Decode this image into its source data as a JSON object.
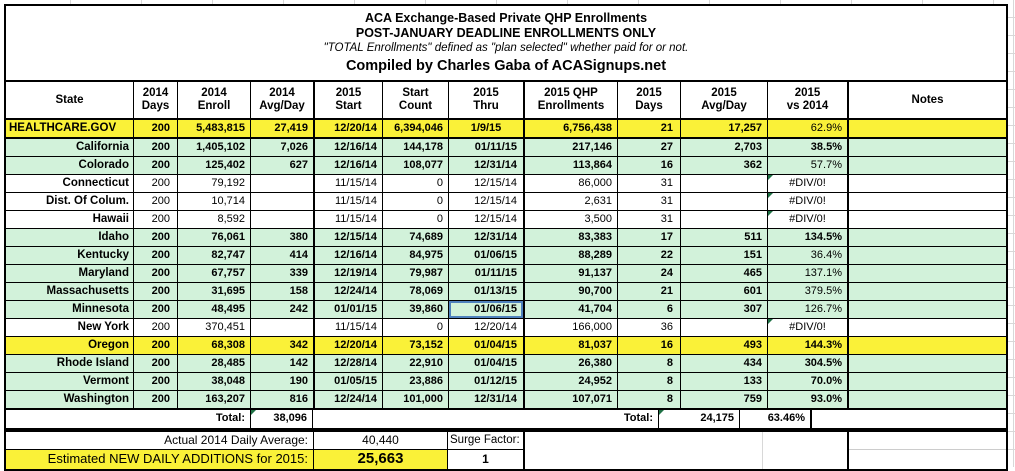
{
  "title": {
    "line1": "ACA Exchange-Based Private QHP Enrollments",
    "line2": "POST-JANUARY DEADLINE ENROLLMENTS ONLY",
    "line3": "\"TOTAL Enrollments\" defined as \"plan selected\" whether paid for or not.",
    "line4": "Compiled by Charles Gaba of ACASignups.net"
  },
  "colors": {
    "highlight_yellow": "#faf138",
    "highlight_green": "#d2f2da",
    "row_white": "#ffffff",
    "error_indicator_green": "#1f7145",
    "selection_border_blue": "#4f81bd",
    "border_black": "#000000"
  },
  "misc": {
    "error_text": "#DIV/0!"
  },
  "table": {
    "headers": [
      "State",
      "2014\nDays",
      "2014\nEnroll",
      "2014\nAvg/Day",
      "2015\nStart",
      "Start\nCount",
      "2015\nThru",
      "2015 QHP\nEnrollments",
      "2015\nDays",
      "2015\nAvg/Day",
      "2015\nvs 2014",
      "Notes"
    ],
    "rows": [
      {
        "state": "HEALTHCARE.GOV",
        "days_2014": "200",
        "enroll_2014": "5,483,815",
        "avgday_2014": "27,419",
        "start_2015": "12/20/14",
        "start_count": "6,394,046",
        "thru_2015": "1/9/15",
        "qhp_2015": "6,756,438",
        "days_2015": "21",
        "avgday_2015": "17,257",
        "vs_2014": "62.9%",
        "notes": "",
        "bg": "yellow",
        "values_bold": true,
        "pct_bold": false,
        "state_left": true,
        "thru_center": true,
        "thru_selected": false
      },
      {
        "state": "California",
        "days_2014": "200",
        "enroll_2014": "1,405,102",
        "avgday_2014": "7,026",
        "start_2015": "12/16/14",
        "start_count": "144,178",
        "thru_2015": "01/11/15",
        "qhp_2015": "217,146",
        "days_2015": "27",
        "avgday_2015": "2,703",
        "vs_2014": "38.5%",
        "notes": "",
        "bg": "green",
        "values_bold": true,
        "pct_bold": true,
        "state_left": false,
        "thru_center": false,
        "thru_selected": false
      },
      {
        "state": "Colorado",
        "days_2014": "200",
        "enroll_2014": "125,402",
        "avgday_2014": "627",
        "start_2015": "12/16/14",
        "start_count": "108,077",
        "thru_2015": "12/31/14",
        "qhp_2015": "113,864",
        "days_2015": "16",
        "avgday_2015": "362",
        "vs_2014": "57.7%",
        "notes": "",
        "bg": "green",
        "values_bold": true,
        "pct_bold": false,
        "state_left": false,
        "thru_center": false,
        "thru_selected": false
      },
      {
        "state": "Connecticut",
        "days_2014": "200",
        "enroll_2014": "79,192",
        "avgday_2014": "",
        "start_2015": "11/15/14",
        "start_count": "0",
        "thru_2015": "12/15/14",
        "qhp_2015": "86,000",
        "days_2015": "31",
        "avgday_2015": "",
        "vs_2014": "#DIV/0!",
        "notes": "",
        "bg": "white",
        "values_bold": false,
        "pct_bold": false,
        "state_left": false,
        "thru_center": false,
        "thru_selected": false
      },
      {
        "state": "Dist. Of Colum.",
        "days_2014": "200",
        "enroll_2014": "10,714",
        "avgday_2014": "",
        "start_2015": "11/15/14",
        "start_count": "0",
        "thru_2015": "12/15/14",
        "qhp_2015": "2,631",
        "days_2015": "31",
        "avgday_2015": "",
        "vs_2014": "#DIV/0!",
        "notes": "",
        "bg": "white",
        "values_bold": false,
        "pct_bold": false,
        "state_left": false,
        "thru_center": false,
        "thru_selected": false
      },
      {
        "state": "Hawaii",
        "days_2014": "200",
        "enroll_2014": "8,592",
        "avgday_2014": "",
        "start_2015": "11/15/14",
        "start_count": "0",
        "thru_2015": "12/15/14",
        "qhp_2015": "3,500",
        "days_2015": "31",
        "avgday_2015": "",
        "vs_2014": "#DIV/0!",
        "notes": "",
        "bg": "white",
        "values_bold": false,
        "pct_bold": false,
        "state_left": false,
        "thru_center": false,
        "thru_selected": false
      },
      {
        "state": "Idaho",
        "days_2014": "200",
        "enroll_2014": "76,061",
        "avgday_2014": "380",
        "start_2015": "12/15/14",
        "start_count": "74,689",
        "thru_2015": "12/31/14",
        "qhp_2015": "83,383",
        "days_2015": "17",
        "avgday_2015": "511",
        "vs_2014": "134.5%",
        "notes": "",
        "bg": "green",
        "values_bold": true,
        "pct_bold": true,
        "state_left": false,
        "thru_center": false,
        "thru_selected": false
      },
      {
        "state": "Kentucky",
        "days_2014": "200",
        "enroll_2014": "82,747",
        "avgday_2014": "414",
        "start_2015": "12/16/14",
        "start_count": "84,975",
        "thru_2015": "01/06/15",
        "qhp_2015": "88,289",
        "days_2015": "22",
        "avgday_2015": "151",
        "vs_2014": "36.4%",
        "notes": "",
        "bg": "green",
        "values_bold": true,
        "pct_bold": false,
        "state_left": false,
        "thru_center": false,
        "thru_selected": false
      },
      {
        "state": "Maryland",
        "days_2014": "200",
        "enroll_2014": "67,757",
        "avgday_2014": "339",
        "start_2015": "12/19/14",
        "start_count": "79,987",
        "thru_2015": "01/11/15",
        "qhp_2015": "91,137",
        "days_2015": "24",
        "avgday_2015": "465",
        "vs_2014": "137.1%",
        "notes": "",
        "bg": "green",
        "values_bold": true,
        "pct_bold": false,
        "state_left": false,
        "thru_center": false,
        "thru_selected": false
      },
      {
        "state": "Massachusetts",
        "days_2014": "200",
        "enroll_2014": "31,695",
        "avgday_2014": "158",
        "start_2015": "12/24/14",
        "start_count": "78,069",
        "thru_2015": "01/13/15",
        "qhp_2015": "90,700",
        "days_2015": "21",
        "avgday_2015": "601",
        "vs_2014": "379.5%",
        "notes": "",
        "bg": "green",
        "values_bold": true,
        "pct_bold": false,
        "state_left": false,
        "thru_center": false,
        "thru_selected": false
      },
      {
        "state": "Minnesota",
        "days_2014": "200",
        "enroll_2014": "48,495",
        "avgday_2014": "242",
        "start_2015": "01/01/15",
        "start_count": "39,860",
        "thru_2015": "01/06/15",
        "qhp_2015": "41,704",
        "days_2015": "6",
        "avgday_2015": "307",
        "vs_2014": "126.7%",
        "notes": "",
        "bg": "green",
        "values_bold": true,
        "pct_bold": false,
        "state_left": false,
        "thru_center": false,
        "thru_selected": true
      },
      {
        "state": "New York",
        "days_2014": "200",
        "enroll_2014": "370,451",
        "avgday_2014": "",
        "start_2015": "11/15/14",
        "start_count": "0",
        "thru_2015": "12/20/14",
        "qhp_2015": "166,000",
        "days_2015": "36",
        "avgday_2015": "",
        "vs_2014": "#DIV/0!",
        "notes": "",
        "bg": "white",
        "values_bold": false,
        "pct_bold": false,
        "state_left": false,
        "thru_center": false,
        "thru_selected": false
      },
      {
        "state": "Oregon",
        "days_2014": "200",
        "enroll_2014": "68,308",
        "avgday_2014": "342",
        "start_2015": "12/20/14",
        "start_count": "73,152",
        "thru_2015": "01/04/15",
        "qhp_2015": "81,037",
        "days_2015": "16",
        "avgday_2015": "493",
        "vs_2014": "144.3%",
        "notes": "",
        "bg": "yellow",
        "values_bold": true,
        "pct_bold": true,
        "state_left": false,
        "thru_center": false,
        "thru_selected": false
      },
      {
        "state": "Rhode Island",
        "days_2014": "200",
        "enroll_2014": "28,485",
        "avgday_2014": "142",
        "start_2015": "12/28/14",
        "start_count": "22,910",
        "thru_2015": "01/04/15",
        "qhp_2015": "26,380",
        "days_2015": "8",
        "avgday_2015": "434",
        "vs_2014": "304.5%",
        "notes": "",
        "bg": "green",
        "values_bold": true,
        "pct_bold": true,
        "state_left": false,
        "thru_center": false,
        "thru_selected": false
      },
      {
        "state": "Vermont",
        "days_2014": "200",
        "enroll_2014": "38,048",
        "avgday_2014": "190",
        "start_2015": "01/05/15",
        "start_count": "23,886",
        "thru_2015": "01/12/15",
        "qhp_2015": "24,952",
        "days_2015": "8",
        "avgday_2015": "133",
        "vs_2014": "70.0%",
        "notes": "",
        "bg": "green",
        "values_bold": true,
        "pct_bold": true,
        "state_left": false,
        "thru_center": false,
        "thru_selected": false
      },
      {
        "state": "Washington",
        "days_2014": "200",
        "enroll_2014": "163,207",
        "avgday_2014": "816",
        "start_2015": "12/24/14",
        "start_count": "101,000",
        "thru_2015": "12/31/14",
        "qhp_2015": "107,071",
        "days_2015": "8",
        "avgday_2015": "759",
        "vs_2014": "93.0%",
        "notes": "",
        "bg": "green",
        "values_bold": true,
        "pct_bold": true,
        "state_left": false,
        "thru_center": false,
        "thru_selected": false
      }
    ]
  },
  "totals": {
    "label_left": "Total:",
    "total_2014_avgday": "38,096",
    "label_right": "Total:",
    "total_2015_avgday": "24,175",
    "total_vs_2014": "63.46%"
  },
  "summary": {
    "daily_avg_label": "Actual 2014 Daily Average:",
    "daily_avg_value": "40,440",
    "surge_label": "Surge Factor:",
    "surge_value": "1",
    "estimate_label": "Estimated NEW DAILY ADDITIONS for 2015:",
    "estimate_value": "25,663"
  }
}
